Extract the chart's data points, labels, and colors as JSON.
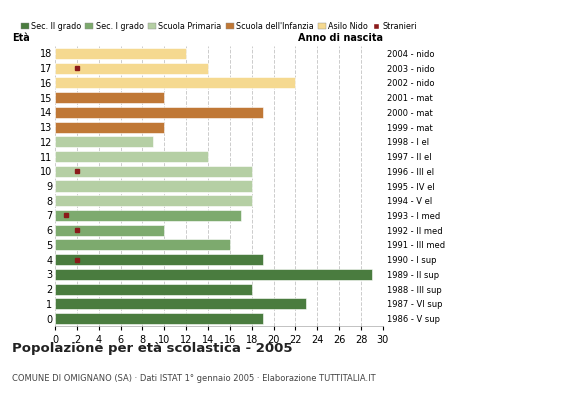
{
  "ages": [
    18,
    17,
    16,
    15,
    14,
    13,
    12,
    11,
    10,
    9,
    8,
    7,
    6,
    5,
    4,
    3,
    2,
    1,
    0
  ],
  "anni_nascita": [
    "1986 - V sup",
    "1987 - VI sup",
    "1988 - III sup",
    "1989 - II sup",
    "1990 - I sup",
    "1991 - III med",
    "1992 - II med",
    "1993 - I med",
    "1994 - V el",
    "1995 - IV el",
    "1996 - III el",
    "1997 - II el",
    "1998 - I el",
    "1999 - mat",
    "2000 - mat",
    "2001 - mat",
    "2002 - nido",
    "2003 - nido",
    "2004 - nido"
  ],
  "bar_values": [
    19,
    23,
    18,
    29,
    19,
    16,
    10,
    17,
    18,
    18,
    18,
    14,
    9,
    10,
    19,
    10,
    22,
    14,
    12
  ],
  "bar_colors": [
    "#4a7c3f",
    "#4a7c3f",
    "#4a7c3f",
    "#4a7c3f",
    "#4a7c3f",
    "#7daa6e",
    "#7daa6e",
    "#7daa6e",
    "#b5cfa4",
    "#b5cfa4",
    "#b5cfa4",
    "#b5cfa4",
    "#b5cfa4",
    "#c07836",
    "#c07836",
    "#c07836",
    "#f5d990",
    "#f5d990",
    "#f5d990"
  ],
  "stranieri_ages": [
    14,
    12,
    11,
    8,
    1
  ],
  "stranieri_values": [
    2,
    2,
    1,
    2,
    2
  ],
  "stranieri_color": "#8b1a1a",
  "legend_labels": [
    "Sec. II grado",
    "Sec. I grado",
    "Scuola Primaria",
    "Scuola dell'Infanzia",
    "Asilo Nido",
    "Stranieri"
  ],
  "legend_colors": [
    "#4a7c3f",
    "#7daa6e",
    "#b5cfa4",
    "#c07836",
    "#f5d990",
    "#8b1a1a"
  ],
  "title": "Popolazione per età scolastica - 2005",
  "subtitle": "COMUNE DI OMIGNANO (SA) · Dati ISTAT 1° gennaio 2005 · Elaborazione TUTTITALIA.IT",
  "ylabel_eta": "Età",
  "xlabel_anno": "Anno di nascita",
  "xlim": [
    0,
    30
  ],
  "background_color": "#ffffff",
  "grid_color": "#cccccc"
}
